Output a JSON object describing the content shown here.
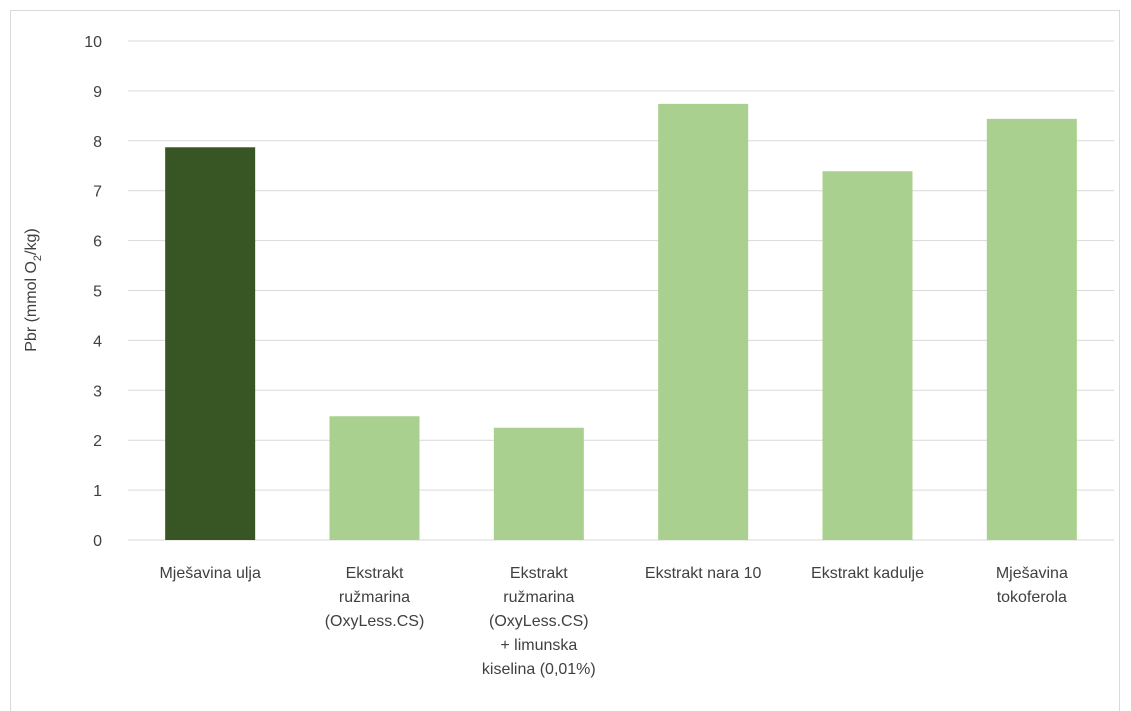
{
  "chart_data": {
    "type": "bar",
    "title": "",
    "xlabel": "",
    "ylabel": "Pbr (mmol O",
    "ylabel_subscript": "2",
    "ylabel_suffix": "/kg)",
    "ylim": [
      0,
      10
    ],
    "yticks": [
      "0",
      "1",
      "2",
      "3",
      "4",
      "5",
      "6",
      "7",
      "8",
      "9",
      "10"
    ],
    "grid": true,
    "categories": [
      [
        "Mješavina ulja"
      ],
      [
        "Ekstrakt",
        "ružmarina",
        "(OxyLess.CS)"
      ],
      [
        "Ekstrakt",
        "ružmarina",
        "(OxyLess.CS)",
        "+ limunska",
        "kiselina (0,01%)"
      ],
      [
        "Ekstrakt nara 10"
      ],
      [
        "Ekstrakt kadulje"
      ],
      [
        "Mješavina",
        "tokoferola"
      ]
    ],
    "values": [
      7.87,
      2.48,
      2.25,
      8.74,
      7.39,
      8.44
    ],
    "colors": {
      "highlight": "#375623",
      "default": "#a9d08e",
      "gridline": "#d9d9d9",
      "text": "#404040"
    },
    "highlight_index": 0
  }
}
